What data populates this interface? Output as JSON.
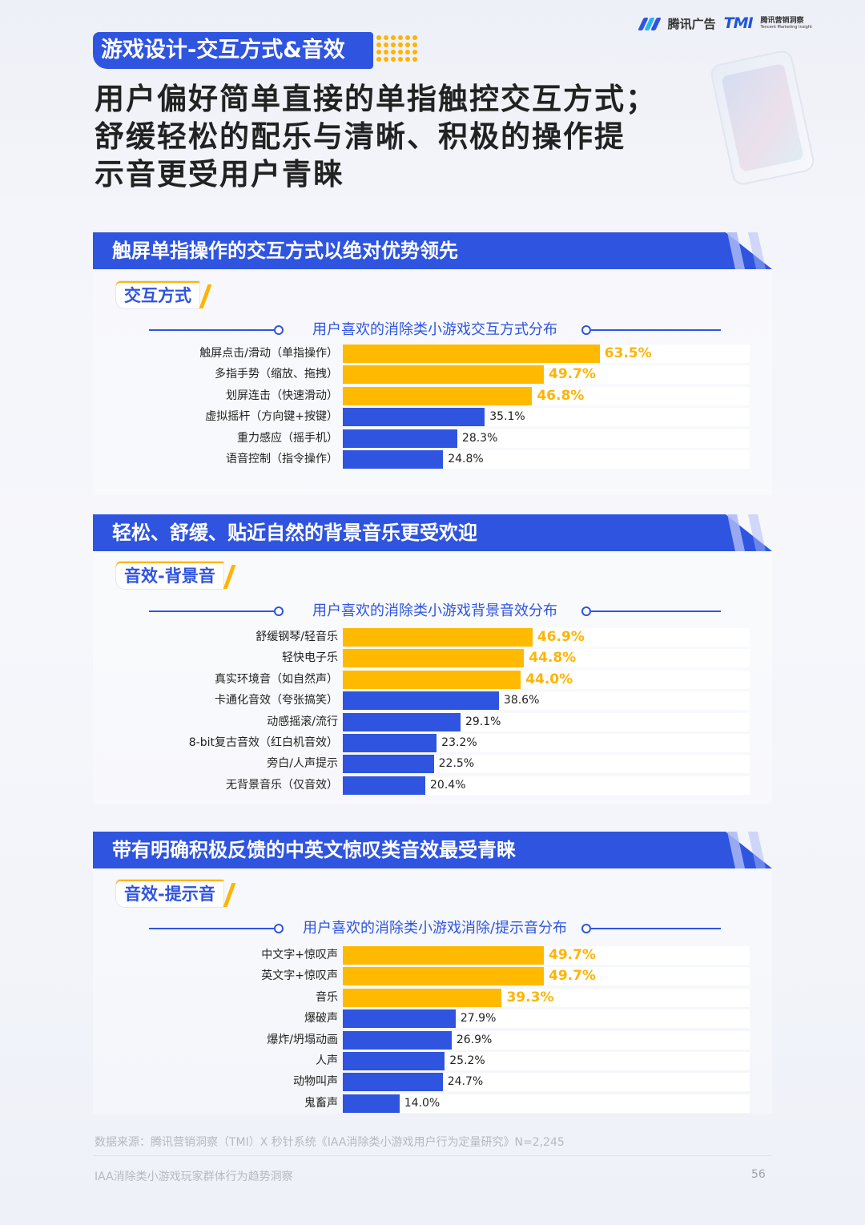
{
  "header": {
    "brand1": "腾讯广告",
    "brand2_mark": "TMI",
    "brand2_name": "腾讯营销洞察",
    "brand2_en": "Tencent Marketing Insight"
  },
  "tag": "游戏设计-交互方式&音效",
  "headline": [
    "用户偏好简单直接的单指触控交互方式；",
    "舒缓轻松的配乐与清晰、积极的操作提",
    "示音更受用户青睐"
  ],
  "sections": [
    {
      "banner": "触屏单指操作的交互方式以绝对优势领先",
      "sub_tag": "交互方式"
    },
    {
      "banner": "轻松、舒缓、贴近自然的背景音乐更受欢迎",
      "sub_tag": "音效-背景音"
    },
    {
      "banner": "带有明确积极反馈的中英文惊叹类音效最受青睐",
      "sub_tag": "音效-提示音"
    }
  ],
  "colors": {
    "primary": "#2f54e0",
    "highlight": "#ffba00",
    "highlight_text": "#ffb400"
  },
  "chart_data": [
    {
      "type": "bar",
      "orientation": "horizontal",
      "title": "用户喜欢的消除类小游戏交互方式分布",
      "categories": [
        "触屏点击/滑动（单指操作）",
        "多指手势（缩放、拖拽）",
        "划屏连击（快速滑动）",
        "虚拟摇杆（方向键+按键）",
        "重力感应（摇手机）",
        "语音控制（指令操作）"
      ],
      "values": [
        63.5,
        49.7,
        46.8,
        35.1,
        28.3,
        24.8
      ],
      "labels": [
        "63.5%",
        "49.7%",
        "46.8%",
        "35.1%",
        "28.3%",
        "24.8%"
      ],
      "highlight_top": 3,
      "unit": "%"
    },
    {
      "type": "bar",
      "orientation": "horizontal",
      "title": "用户喜欢的消除类小游戏背景音效分布",
      "categories": [
        "舒缓钢琴/轻音乐",
        "轻快电子乐",
        "真实环境音（如自然声）",
        "卡通化音效（夸张搞笑）",
        "动感摇滚/流行",
        "8-bit复古音效（红白机音效）",
        "旁白/人声提示",
        "无背景音乐（仅音效）"
      ],
      "values": [
        46.9,
        44.8,
        44.0,
        38.6,
        29.1,
        23.2,
        22.5,
        20.4
      ],
      "labels": [
        "46.9%",
        "44.8%",
        "44.0%",
        "38.6%",
        "29.1%",
        "23.2%",
        "22.5%",
        "20.4%"
      ],
      "highlight_top": 3,
      "unit": "%"
    },
    {
      "type": "bar",
      "orientation": "horizontal",
      "title": "用户喜欢的消除类小游戏消除/提示音分布",
      "categories": [
        "中文字+惊叹声",
        "英文字+惊叹声",
        "音乐",
        "爆破声",
        "爆炸/坍塌动画",
        "人声",
        "动物叫声",
        "鬼畜声"
      ],
      "values": [
        49.7,
        49.7,
        39.3,
        27.9,
        26.9,
        25.2,
        24.7,
        14.0
      ],
      "labels": [
        "49.7%",
        "49.7%",
        "39.3%",
        "27.9%",
        "26.9%",
        "25.2%",
        "24.7%",
        "14.0%"
      ],
      "highlight_top": 3,
      "unit": "%"
    }
  ],
  "source": "数据来源：腾讯营销洞察（TMI）X 秒针系统《IAA消除类小游戏用户行为定量研究》N=2,245",
  "footer": "IAA消除类小游戏玩家群体行为趋势洞察",
  "page_number": "56"
}
